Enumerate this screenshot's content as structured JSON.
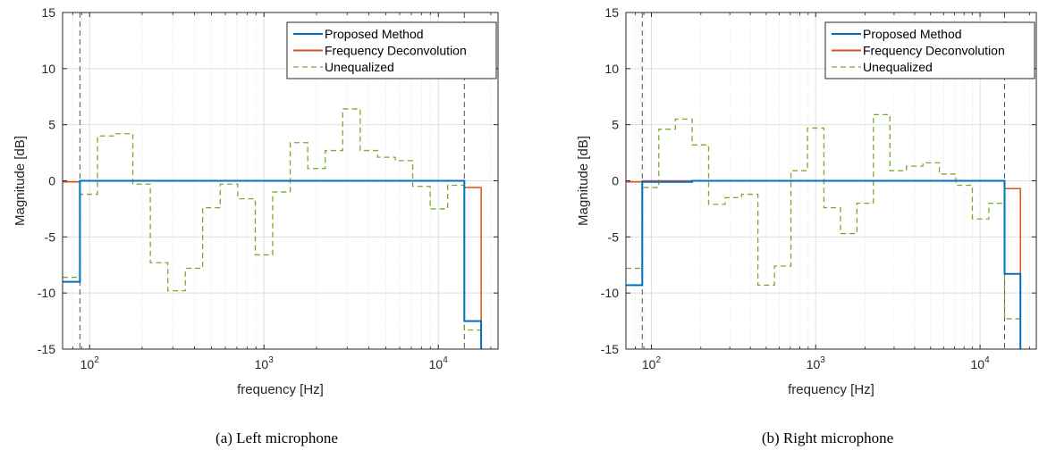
{
  "chart_data": [
    {
      "type": "line",
      "caption": "(a) Left microphone",
      "xlabel": "frequency [Hz]",
      "ylabel": "Magnitude [dB]",
      "xscale": "log",
      "xlim": [
        70,
        22000
      ],
      "ylim": [
        -15,
        15
      ],
      "yticks": [
        "-15",
        "-10",
        "-5",
        "0",
        "5",
        "10",
        "15"
      ],
      "xticks": [
        {
          "base": "10",
          "exp": "2"
        },
        {
          "base": "10",
          "exp": "3"
        },
        {
          "base": "10",
          "exp": "4"
        }
      ],
      "grid": true,
      "legend_position": "top-right",
      "vlines": [
        88,
        14100
      ],
      "series": [
        {
          "name": "Proposed Method",
          "color": "#0072BD",
          "style": "solid",
          "edges": [
            70,
            88,
            177,
            14100,
            17600,
            22000
          ],
          "values": [
            -9.0,
            0.0,
            0.0,
            -12.5,
            -15.5
          ]
        },
        {
          "name": "Frequency Deconvolution",
          "color": "#D95319",
          "style": "solid",
          "edges": [
            70,
            88,
            14100,
            17600,
            22000
          ],
          "values": [
            -0.1,
            0.0,
            -0.6,
            -15.5
          ]
        },
        {
          "name": "Unequalized",
          "color": "#77AC30",
          "style": "dashed",
          "edges": [
            70,
            88,
            111,
            140,
            177,
            223,
            281,
            354,
            445,
            561,
            707,
            891,
            1122,
            1414,
            1782,
            2245,
            2828,
            3564,
            4490,
            5657,
            7127,
            8980,
            11314,
            14100,
            17600,
            22000
          ],
          "values": [
            -8.6,
            -1.2,
            4.0,
            4.2,
            -0.3,
            -7.3,
            -9.8,
            -7.8,
            -2.4,
            -0.3,
            -1.6,
            -6.6,
            -1.0,
            3.4,
            1.1,
            2.7,
            6.4,
            2.7,
            2.1,
            1.8,
            -0.5,
            -2.5,
            -0.4,
            -13.3,
            -15.5
          ]
        }
      ]
    },
    {
      "type": "line",
      "caption": "(b) Right microphone",
      "xlabel": "frequency [Hz]",
      "ylabel": "Magnitude [dB]",
      "xscale": "log",
      "xlim": [
        70,
        22000
      ],
      "ylim": [
        -15,
        15
      ],
      "yticks": [
        "-15",
        "-10",
        "-5",
        "0",
        "5",
        "10",
        "15"
      ],
      "xticks": [
        {
          "base": "10",
          "exp": "2"
        },
        {
          "base": "10",
          "exp": "3"
        },
        {
          "base": "10",
          "exp": "4"
        }
      ],
      "grid": true,
      "legend_position": "top-right",
      "vlines": [
        88,
        14100
      ],
      "series": [
        {
          "name": "Proposed Method",
          "color": "#0072BD",
          "style": "solid",
          "edges": [
            70,
            88,
            177,
            14100,
            17600,
            22000
          ],
          "values": [
            -9.3,
            -0.1,
            0.0,
            -8.3,
            -15.5
          ]
        },
        {
          "name": "Frequency Deconvolution",
          "color": "#D95319",
          "style": "solid",
          "edges": [
            70,
            88,
            14100,
            17600,
            22000
          ],
          "values": [
            -0.1,
            0.0,
            -0.7,
            -15.5
          ]
        },
        {
          "name": "Unequalized",
          "color": "#77AC30",
          "style": "dashed",
          "edges": [
            70,
            88,
            111,
            140,
            177,
            223,
            281,
            354,
            445,
            561,
            707,
            891,
            1122,
            1414,
            1782,
            2245,
            2828,
            3564,
            4490,
            5657,
            7127,
            8980,
            11314,
            14100,
            17600,
            22000
          ],
          "values": [
            -7.8,
            -0.6,
            4.6,
            5.5,
            3.2,
            -2.1,
            -1.5,
            -1.2,
            -9.3,
            -7.6,
            0.9,
            4.7,
            -2.4,
            -4.7,
            -2.0,
            5.9,
            0.9,
            1.3,
            1.6,
            0.6,
            -0.4,
            -3.4,
            -2.0,
            -12.3,
            -15.5
          ]
        }
      ]
    }
  ]
}
